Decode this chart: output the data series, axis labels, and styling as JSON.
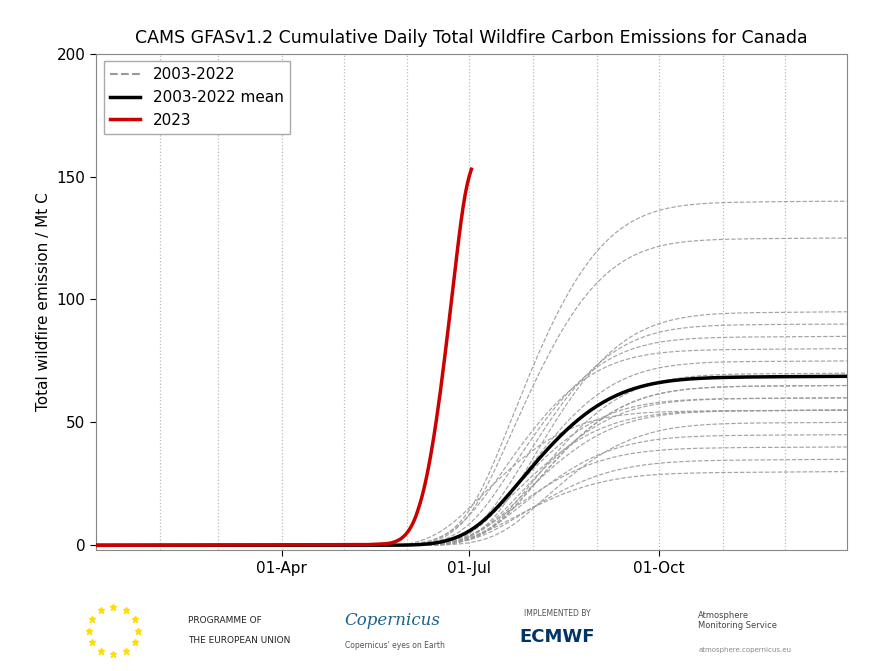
{
  "title": "CAMS GFASv1.2 Cumulative Daily Total Wildfire Carbon Emissions for Canada",
  "ylabel": "Total wildfire emission / Mt C",
  "title_fontsize": 12.5,
  "label_fontsize": 11,
  "tick_fontsize": 11,
  "ylim": [
    -2,
    200
  ],
  "yticks": [
    0,
    50,
    100,
    150,
    200
  ],
  "background_color": "#ffffff",
  "grid_color": "#bbbbbb",
  "mean_color": "#000000",
  "year2023_color": "#cc0000",
  "historical_color": "#999999",
  "legend_labels": [
    "2003-2022",
    "2003-2022 mean",
    "2023"
  ],
  "month_days": [
    0,
    31,
    59,
    90,
    120,
    151,
    181,
    212,
    243,
    273,
    304,
    334
  ],
  "xtick_positions": [
    90,
    181,
    273
  ],
  "xtick_labels": [
    "01-Apr",
    "01-Jul",
    "01-Oct"
  ],
  "historical_final_values": [
    125,
    55,
    95,
    40,
    60,
    50,
    45,
    35,
    55,
    30,
    65,
    80,
    70,
    90,
    140,
    60,
    75,
    65,
    55,
    85
  ],
  "historical_peak_days": [
    200,
    185,
    210,
    200,
    200,
    215,
    205,
    205,
    200,
    200,
    210,
    195,
    210,
    205,
    200,
    205,
    205,
    210,
    205,
    200
  ],
  "historical_fire_starts": [
    155,
    148,
    162,
    151,
    157,
    168,
    155,
    160,
    152,
    158,
    163,
    147,
    165,
    158,
    150,
    162,
    155,
    165,
    158,
    152
  ],
  "year2023_end_day": 182,
  "year2023_peak_value": 153
}
